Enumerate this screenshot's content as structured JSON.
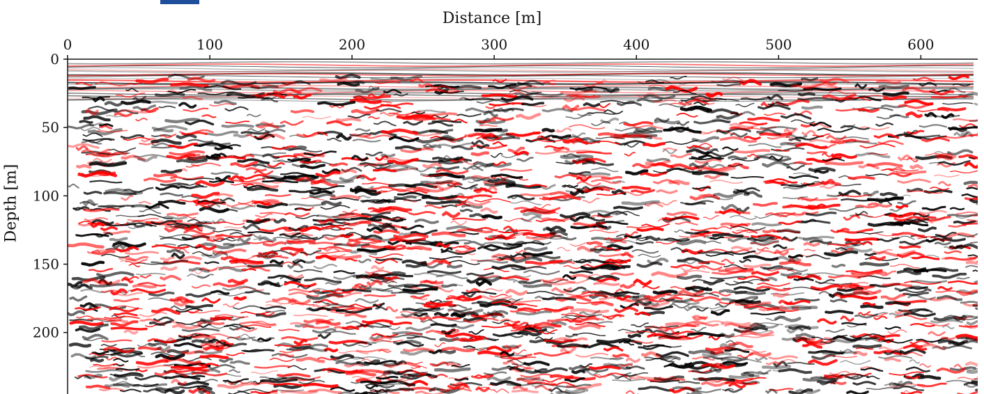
{
  "chart_data": {
    "type": "heatmap",
    "description_kind": "seismic/GPR reflection section",
    "xlabel": "Distance [m]",
    "ylabel": "Depth [m]",
    "xlim": [
      0,
      640
    ],
    "ylim": [
      245,
      0
    ],
    "x_ticks": [
      0,
      100,
      200,
      300,
      400,
      500,
      600
    ],
    "y_ticks": [
      0,
      50,
      100,
      150,
      200
    ],
    "x_tick_labels": [
      "0",
      "100",
      "200",
      "300",
      "400",
      "500",
      "600"
    ],
    "y_tick_labels": [
      "0",
      "50",
      "100",
      "150",
      "200"
    ],
    "x_axis_position": "top",
    "colormap": [
      "#000000",
      "#ffffff",
      "#ff0000"
    ],
    "grid": false,
    "legend": "none"
  },
  "colors": {
    "negative": "#000000",
    "zero": "#ffffff",
    "positive": "#ff0000",
    "crop_mark": "#1f4e9a"
  }
}
